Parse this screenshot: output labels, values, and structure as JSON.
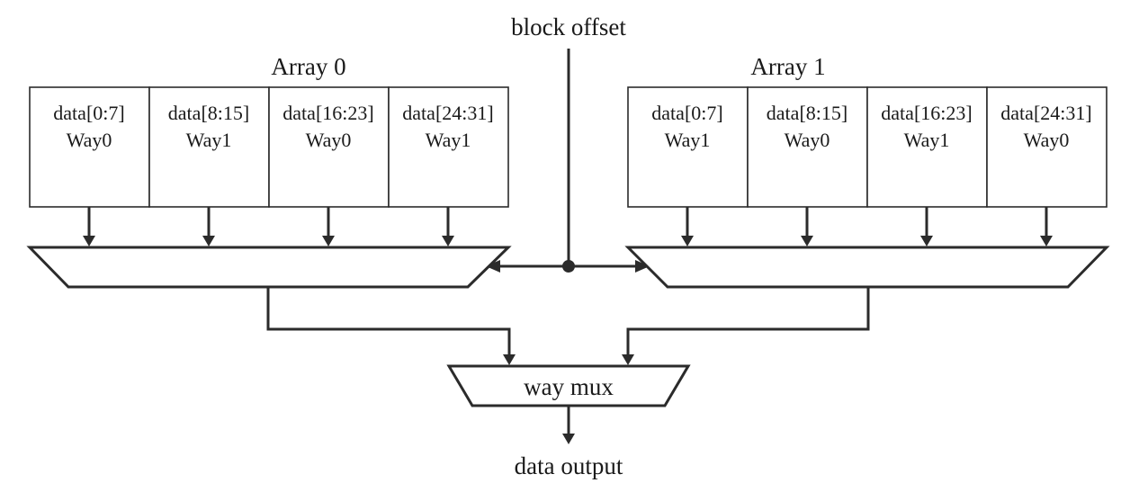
{
  "labels": {
    "block_offset": "block offset",
    "data_output": "data output",
    "way_mux": "way mux"
  },
  "arrays": [
    {
      "title": "Array 0",
      "cells": [
        {
          "range": "data[0:7]",
          "way": "Way0"
        },
        {
          "range": "data[8:15]",
          "way": "Way1"
        },
        {
          "range": "data[16:23]",
          "way": "Way0"
        },
        {
          "range": "data[24:31]",
          "way": "Way1"
        }
      ]
    },
    {
      "title": "Array 1",
      "cells": [
        {
          "range": "data[0:7]",
          "way": "Way1"
        },
        {
          "range": "data[8:15]",
          "way": "Way0"
        },
        {
          "range": "data[16:23]",
          "way": "Way1"
        },
        {
          "range": "data[24:31]",
          "way": "Way0"
        }
      ]
    }
  ],
  "colors": {
    "line": "#2b2b2b",
    "text": "#1a1a1a",
    "background": "#ffffff"
  }
}
